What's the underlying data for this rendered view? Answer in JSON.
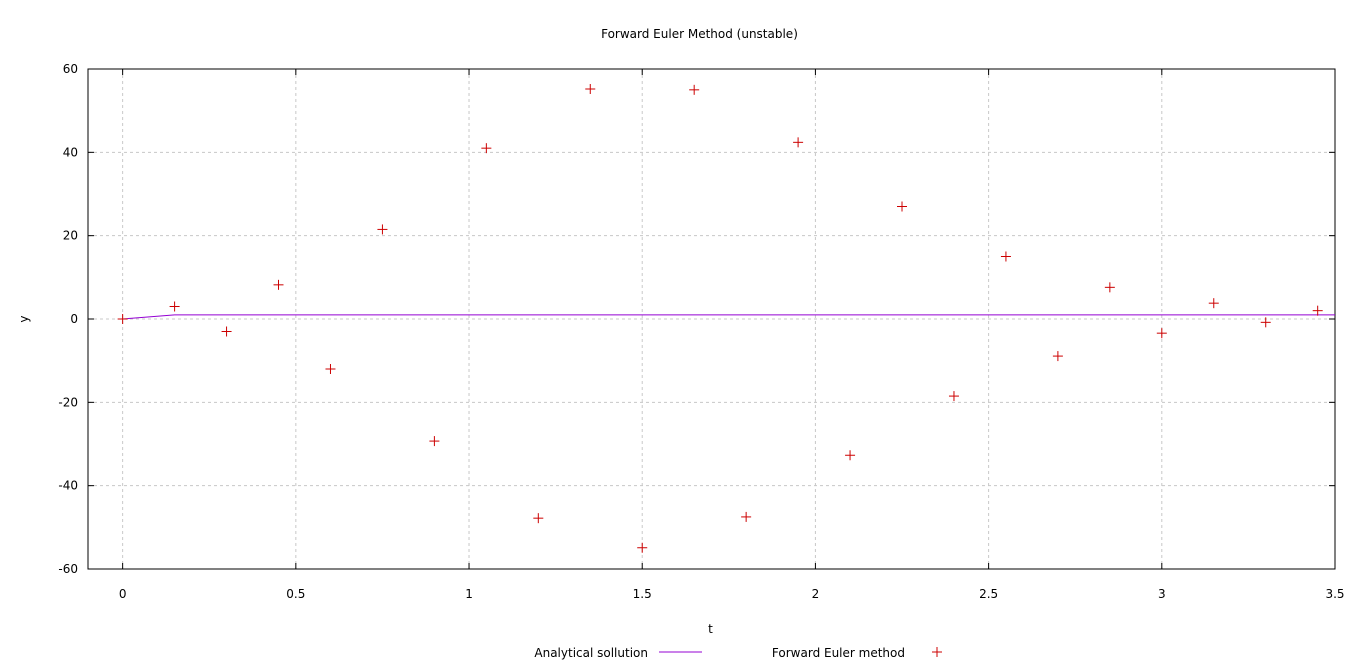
{
  "chart_data": {
    "type": "scatter",
    "title": "Forward Euler Method (unstable)",
    "xlabel": "t",
    "ylabel": "y",
    "xlim": [
      -0.1,
      3.5
    ],
    "ylim": [
      -60,
      60
    ],
    "xticks": [
      0,
      0.5,
      1,
      1.5,
      2,
      2.5,
      3,
      3.5
    ],
    "xtick_labels": [
      "0",
      "0.5",
      "1",
      "1.5",
      "2",
      "2.5",
      "3",
      "3.5"
    ],
    "yticks": [
      -60,
      -40,
      -20,
      0,
      20,
      40,
      60
    ],
    "ytick_labels": [
      "-60",
      "-40",
      "-20",
      "0",
      "20",
      "40",
      "60"
    ],
    "grid": true,
    "legend_position": "bottom-center",
    "series": [
      {
        "name": "Analytical sollution",
        "style": "line",
        "color": "#9400d3",
        "x": [
          0,
          0.15,
          0.3,
          0.45,
          0.6,
          0.75,
          0.9,
          1.05,
          1.2,
          1.35,
          1.5,
          1.65,
          1.8,
          1.95,
          2.1,
          2.25,
          2.4,
          2.55,
          2.7,
          2.85,
          3.0,
          3.15,
          3.3,
          3.45,
          3.5
        ],
        "y": [
          0,
          0.99,
          1,
          1,
          1,
          1,
          1,
          1,
          1,
          1,
          1,
          1,
          1,
          1,
          1,
          1,
          1,
          1,
          1,
          1,
          1,
          1,
          1,
          1,
          1
        ]
      },
      {
        "name": "Forward Euler method",
        "style": "points",
        "marker": "+",
        "color": "#cc0000",
        "x": [
          0,
          0.15,
          0.3,
          0.45,
          0.6,
          0.75,
          0.9,
          1.05,
          1.2,
          1.35,
          1.5,
          1.65,
          1.8,
          1.95,
          2.1,
          2.25,
          2.4,
          2.55,
          2.7,
          2.85,
          3.0,
          3.15,
          3.3,
          3.45
        ],
        "y": [
          0,
          3.0,
          -3.0,
          8.2,
          -12.0,
          21.5,
          -29.3,
          41.0,
          -47.8,
          55.2,
          -54.9,
          55.0,
          -47.5,
          42.4,
          -32.7,
          27.0,
          -18.5,
          15.0,
          -8.9,
          7.6,
          -3.4,
          3.8,
          -0.8,
          2.0
        ]
      }
    ]
  }
}
